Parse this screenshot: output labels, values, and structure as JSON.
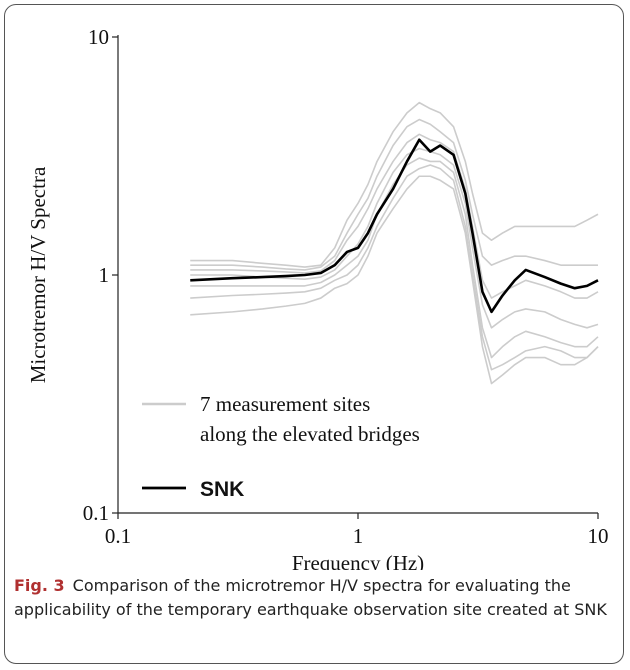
{
  "chart_data": {
    "type": "line",
    "y_label": "Microtremor H/V Spectra",
    "x_label": "Frequency (Hz)",
    "xscale": "log",
    "yscale": "log",
    "xlim": [
      0.1,
      10
    ],
    "ylim": [
      0.1,
      10
    ],
    "xticks": [
      0.1,
      1,
      10
    ],
    "yticks": [
      0.1,
      1,
      10
    ],
    "x": [
      0.2,
      0.3,
      0.4,
      0.5,
      0.6,
      0.7,
      0.8,
      0.9,
      1.0,
      1.1,
      1.2,
      1.4,
      1.6,
      1.8,
      2.0,
      2.2,
      2.5,
      2.8,
      3.0,
      3.3,
      3.6,
      4.0,
      4.5,
      5.0,
      6.0,
      7.0,
      8.0,
      9.0,
      10.0
    ],
    "series": [
      {
        "color": "#cccccc",
        "values": [
          1.15,
          1.15,
          1.12,
          1.1,
          1.08,
          1.1,
          1.3,
          1.7,
          2.0,
          2.4,
          3.0,
          4.0,
          4.8,
          5.3,
          5.0,
          4.8,
          4.2,
          3.0,
          2.2,
          1.5,
          1.4,
          1.5,
          1.6,
          1.6,
          1.6,
          1.6,
          1.6,
          1.7,
          1.8
        ]
      },
      {
        "color": "#cccccc",
        "values": [
          1.1,
          1.1,
          1.08,
          1.06,
          1.05,
          1.08,
          1.2,
          1.5,
          1.8,
          2.1,
          2.6,
          3.5,
          4.2,
          4.5,
          4.3,
          4.0,
          3.6,
          2.5,
          1.8,
          1.2,
          1.1,
          1.15,
          1.2,
          1.2,
          1.15,
          1.1,
          1.1,
          1.1,
          1.1
        ]
      },
      {
        "color": "#cccccc",
        "values": [
          1.05,
          1.05,
          1.04,
          1.03,
          1.02,
          1.04,
          1.15,
          1.4,
          1.6,
          1.9,
          2.3,
          3.0,
          3.6,
          3.9,
          3.7,
          3.6,
          3.3,
          2.3,
          1.6,
          0.95,
          0.8,
          0.85,
          0.9,
          0.95,
          0.9,
          0.85,
          0.8,
          0.8,
          0.85
        ]
      },
      {
        "color": "#cccccc",
        "values": [
          1.0,
          1.0,
          0.98,
          0.97,
          0.96,
          0.98,
          1.05,
          1.2,
          1.35,
          1.6,
          2.0,
          2.7,
          3.2,
          3.4,
          3.3,
          3.2,
          2.9,
          2.0,
          1.3,
          0.75,
          0.6,
          0.65,
          0.7,
          0.72,
          0.7,
          0.65,
          0.62,
          0.6,
          0.62
        ]
      },
      {
        "color": "#cccccc",
        "values": [
          0.9,
          0.9,
          0.9,
          0.9,
          0.9,
          0.93,
          1.0,
          1.1,
          1.2,
          1.4,
          1.8,
          2.4,
          2.9,
          3.1,
          3.0,
          3.0,
          2.7,
          1.8,
          1.1,
          0.6,
          0.45,
          0.5,
          0.55,
          0.58,
          0.55,
          0.52,
          0.5,
          0.5,
          0.55
        ]
      },
      {
        "color": "#cccccc",
        "values": [
          0.8,
          0.82,
          0.83,
          0.84,
          0.85,
          0.88,
          0.95,
          1.0,
          1.1,
          1.3,
          1.6,
          2.1,
          2.6,
          2.8,
          2.9,
          2.8,
          2.5,
          1.6,
          1.0,
          0.55,
          0.4,
          0.42,
          0.45,
          0.48,
          0.5,
          0.48,
          0.45,
          0.45,
          0.5
        ]
      },
      {
        "color": "#cccccc",
        "values": [
          0.68,
          0.7,
          0.72,
          0.74,
          0.76,
          0.8,
          0.88,
          0.92,
          1.0,
          1.2,
          1.5,
          1.9,
          2.3,
          2.6,
          2.6,
          2.5,
          2.3,
          1.5,
          0.95,
          0.5,
          0.35,
          0.38,
          0.42,
          0.45,
          0.45,
          0.42,
          0.42,
          0.45,
          0.5
        ]
      },
      {
        "name": "SNK",
        "color": "#000000",
        "values": [
          0.95,
          0.97,
          0.98,
          0.99,
          1.0,
          1.02,
          1.1,
          1.25,
          1.3,
          1.5,
          1.8,
          2.3,
          3.0,
          3.7,
          3.3,
          3.5,
          3.2,
          2.2,
          1.5,
          0.85,
          0.7,
          0.82,
          0.95,
          1.05,
          0.98,
          0.92,
          0.88,
          0.9,
          0.95
        ]
      }
    ],
    "group_legend": [
      "7 measurement sites",
      "along the elevated bridges"
    ],
    "caption_label": "Fig. 3",
    "caption_text": "Comparison of the microtremor H/V spectra for evaluating the applicability of the temporary earthquake observation site created at SNK"
  }
}
